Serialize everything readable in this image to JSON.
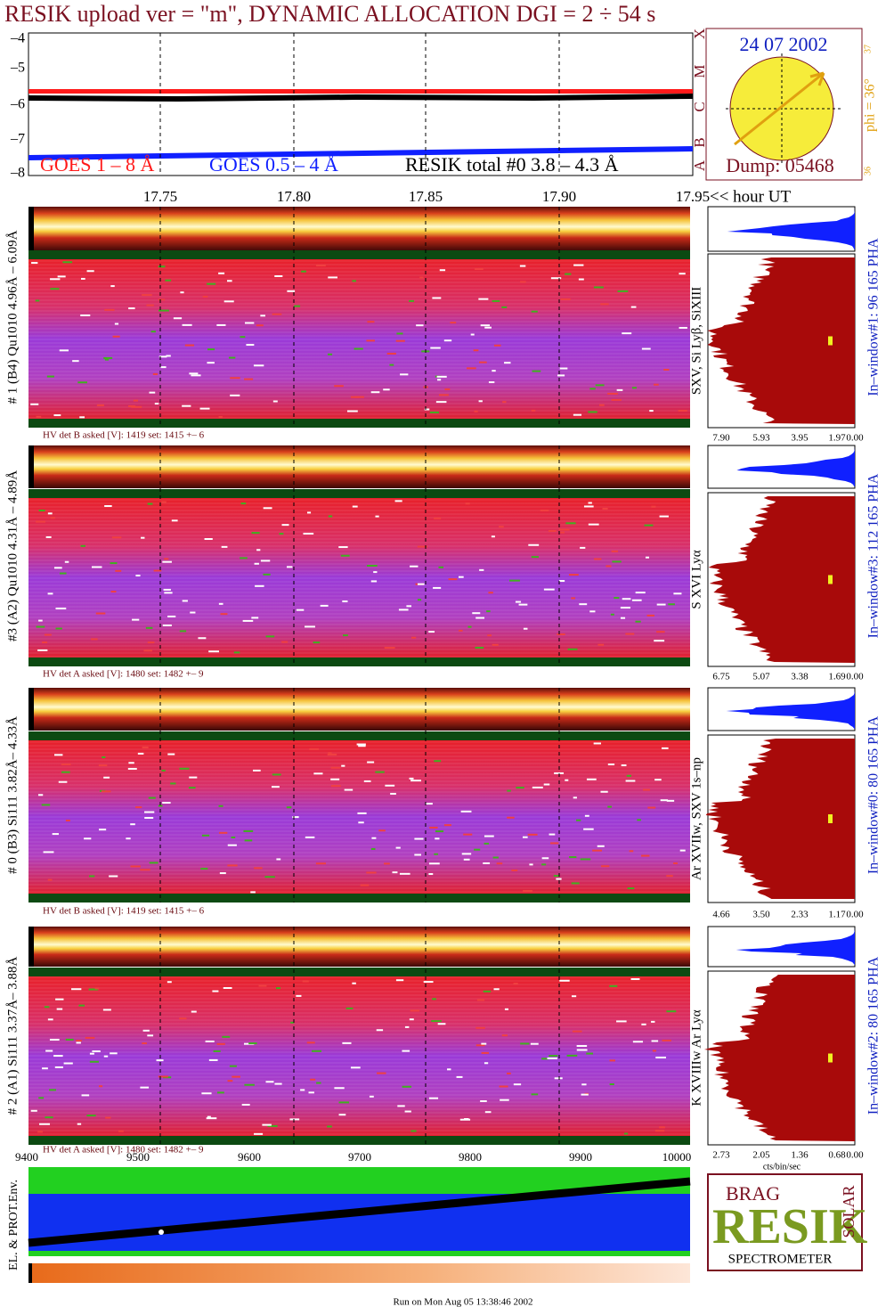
{
  "title": "RESIK upload ver = \"m\", DYNAMIC ALLOCATION  DGI =   2 ÷  54 s",
  "top_plot": {
    "yticks": [
      "–4",
      "–5",
      "–6",
      "–7",
      "–8"
    ],
    "legend": [
      "GOES 1 – 8 Å",
      "GOES 0.5 – 4 Å",
      "RESIK total #0  3.8 – 4.3 Å"
    ],
    "time_ticks": [
      "17.75",
      "17.80",
      "17.85",
      "17.90",
      "17.95"
    ],
    "time_axis_label": "<< hour UT"
  },
  "sun_box": {
    "date": "24 07 2002",
    "dump": "Dump: 05468",
    "classes": [
      "X",
      "M",
      "C",
      "B",
      "A"
    ],
    "phi": "phi = 36°",
    "phi_top": "37",
    "phi_bottom": "36"
  },
  "panels": [
    {
      "label": "# 1 (B4) Qu1010 4.96Å – 6.09Å",
      "hv": "HV det B asked [V]:  1419 set:  1415 +–    6",
      "lines": "SXV, Si Lyβ, SiXIII",
      "window": "In–window#1:   96 165  PHA",
      "pha_ticks": [
        "7.90",
        "5.93",
        "3.95",
        "1.97",
        "0.00"
      ]
    },
    {
      "label": "#3 (A2) Qu1010  4.31Å – 4.89Å",
      "hv": "HV det A asked [V]:  1480 set:  1482 +–    9",
      "lines": "S XVI Lyα",
      "window": "In–window#3:  112 165  PHA",
      "pha_ticks": [
        "6.75",
        "5.07",
        "3.38",
        "1.69",
        "0.00"
      ]
    },
    {
      "label": "# 0 (B3) Si111  3.82Å– 4.33Å",
      "hv": "HV det B asked [V]:  1419 set:  1415 +–    6",
      "lines": "Ar XVIIw,  SXV 1s–np",
      "window": "In–window#0:   80 165  PHA",
      "pha_ticks": [
        "4.66",
        "3.50",
        "2.33",
        "1.17",
        "0.00"
      ]
    },
    {
      "label": "# 2 (A1) Si111  3.37Å– 3.88Å",
      "hv": "HV det A asked [V]:  1480 set:  1482 +–    9",
      "lines": "K XVIIIw  Ar Lyα",
      "window": "In–window#2:   80 165  PHA",
      "pha_ticks": [
        "2.73",
        "2.05",
        "1.36",
        "0.68",
        "0.00"
      ]
    }
  ],
  "cts_label": "cts/bin/sec",
  "env": {
    "label": "EL. & PROT.Env.",
    "xticks": [
      "9400",
      "9500",
      "9600",
      "9700",
      "9800",
      "9900",
      "10000"
    ]
  },
  "logo": {
    "top": "BRAG",
    "main": "RESIK",
    "side": "SOLAR",
    "bottom": "SPECTROMETER"
  },
  "footer": "Run on Mon Aug 05 13:38:46 2002"
}
